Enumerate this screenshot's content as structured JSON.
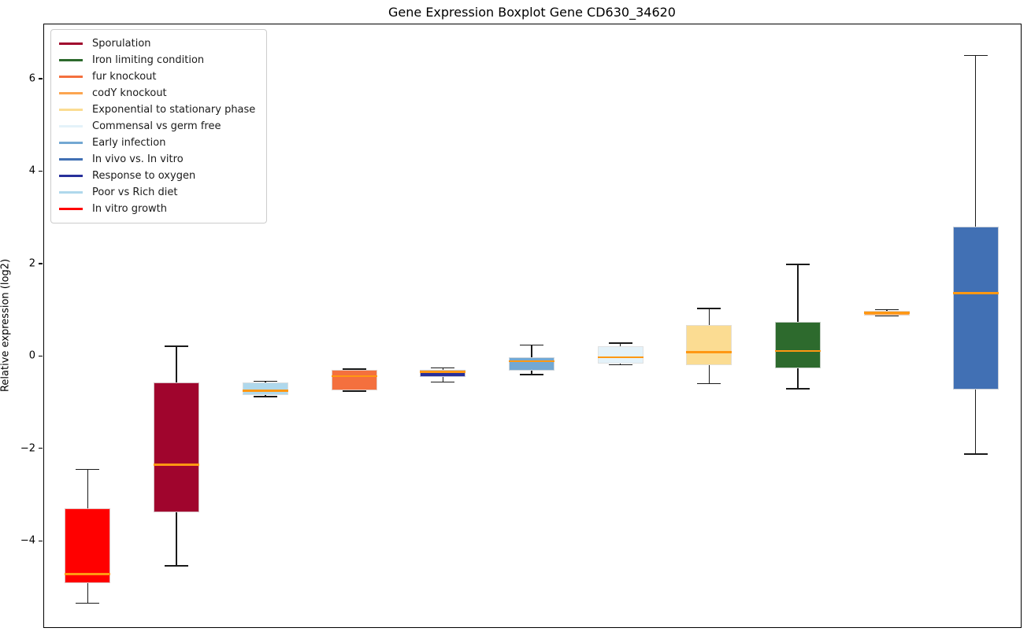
{
  "title": "Gene Expression Boxplot Gene CD630_34620",
  "axes": {
    "ylabel": "Relative expression (log2)",
    "ytick_labels": [
      "6",
      "4",
      "2",
      "0",
      "−2",
      "−4"
    ],
    "ytick_values": [
      6,
      4,
      2,
      0,
      -2,
      -4
    ],
    "ylim": [
      -5.85,
      7.19
    ]
  },
  "legend": {
    "position": "upper-left",
    "items": [
      {
        "label": "Sporulation",
        "color": "#A0052D"
      },
      {
        "label": "Iron limiting condition",
        "color": "#2D6A2D"
      },
      {
        "label": "fur knockout",
        "color": "#F4703E"
      },
      {
        "label": "codY knockout",
        "color": "#FCA550"
      },
      {
        "label": "Exponential to stationary phase",
        "color": "#FBDC92"
      },
      {
        "label": "Commensal vs germ free",
        "color": "#E4F2F9"
      },
      {
        "label": "Early infection",
        "color": "#73A8D3"
      },
      {
        "label": "In vivo vs. In vitro",
        "color": "#4170B4"
      },
      {
        "label": "Response to oxygen",
        "color": "#28309B"
      },
      {
        "label": "Poor vs Rich diet",
        "color": "#AFD8EC"
      },
      {
        "label": "In vitro growth",
        "color": "#FF0000"
      }
    ]
  },
  "chart_data": {
    "type": "boxplot",
    "title": "Gene Expression Boxplot Gene CD630_34620",
    "xlabel": "",
    "ylabel": "Relative expression (log2)",
    "ylim": [
      -5.85,
      7.19
    ],
    "grid": false,
    "median_color": "#FF9813",
    "whisker_color": "#1a1a1a",
    "series": [
      {
        "name": "In vitro growth",
        "color": "#FF0000",
        "whisker_low": -5.35,
        "q1": -4.92,
        "median": -4.72,
        "q3": -3.3,
        "whisker_high": -2.45
      },
      {
        "name": "Sporulation",
        "color": "#A0052D",
        "whisker_low": -4.54,
        "q1": -3.38,
        "median": -2.35,
        "q3": -0.57,
        "whisker_high": 0.21
      },
      {
        "name": "Poor vs Rich diet",
        "color": "#AFD8EC",
        "whisker_low": -0.88,
        "q1": -0.85,
        "median": -0.75,
        "q3": -0.58,
        "whisker_high": -0.55
      },
      {
        "name": "fur knockout",
        "color": "#F4703E",
        "whisker_low": -0.76,
        "q1": -0.74,
        "median": -0.44,
        "q3": -0.3,
        "whisker_high": -0.28
      },
      {
        "name": "Response to oxygen",
        "color": "#28309B",
        "whisker_low": -0.56,
        "q1": -0.46,
        "median": -0.34,
        "q3": -0.3,
        "whisker_high": -0.26
      },
      {
        "name": "Early infection",
        "color": "#73A8D3",
        "whisker_low": -0.4,
        "q1": -0.32,
        "median": -0.11,
        "q3": -0.02,
        "whisker_high": 0.24
      },
      {
        "name": "Commensal vs germ free",
        "color": "#E4F2F9",
        "whisker_low": -0.19,
        "q1": -0.17,
        "median": -0.03,
        "q3": 0.21,
        "whisker_high": 0.28
      },
      {
        "name": "Exponential to stationary phase",
        "color": "#FBDC92",
        "whisker_low": -0.6,
        "q1": -0.2,
        "median": 0.08,
        "q3": 0.67,
        "whisker_high": 1.03
      },
      {
        "name": "Iron limiting condition",
        "color": "#2D6A2D",
        "whisker_low": -0.71,
        "q1": -0.26,
        "median": 0.11,
        "q3": 0.73,
        "whisker_high": 1.98
      },
      {
        "name": "codY knockout",
        "color": "#FCA550",
        "whisker_low": 0.87,
        "q1": 0.88,
        "median": 0.93,
        "q3": 0.97,
        "whisker_high": 1.0
      },
      {
        "name": "In vivo vs. In vitro",
        "color": "#4170B4",
        "whisker_low": -2.12,
        "q1": -0.72,
        "median": 1.36,
        "q3": 2.79,
        "whisker_high": 6.5
      }
    ]
  }
}
